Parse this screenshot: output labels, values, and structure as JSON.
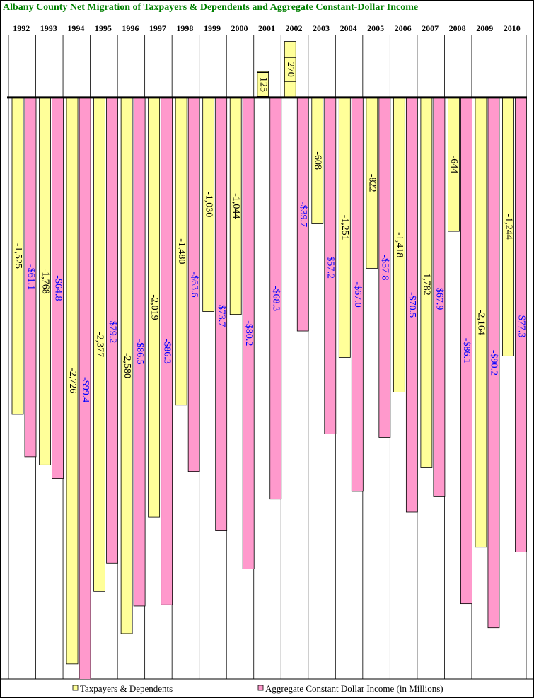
{
  "chart_data": {
    "type": "bar",
    "title": "Albany County Net Migration of Taxpayers & Dependents and Aggregate Constant-Dollar Income",
    "categories": [
      "1992",
      "1993",
      "1994",
      "1995",
      "1996",
      "1997",
      "1998",
      "1999",
      "2000",
      "2001",
      "2002",
      "2003",
      "2004",
      "2005",
      "2006",
      "2007",
      "2008",
      "2009",
      "2010"
    ],
    "series": [
      {
        "name": "Taxpayers & Dependents",
        "color": "#ffff99",
        "values": [
          -1525,
          -1768,
          -2726,
          -2377,
          -2580,
          -2019,
          -1480,
          -1030,
          -1044,
          125,
          270,
          -608,
          -1251,
          -822,
          -1418,
          -1782,
          -644,
          -2164,
          -1244
        ],
        "value_labels": [
          "-1,525",
          "-1,768",
          "-2,726",
          "-2,377",
          "-2,580",
          "-2,019",
          "-1,480",
          "-1,030",
          "-1,044",
          "125",
          "270",
          "-608",
          "-1,251",
          "-822",
          "-1,418",
          "-1,782",
          "-644",
          "-2,164",
          "-1,244"
        ]
      },
      {
        "name": "Aggregate Constant Dollar Income (in Millions)",
        "color": "#ff99cc",
        "axis": "y2",
        "values": [
          -61.1,
          -64.8,
          -99.4,
          -79.2,
          -86.5,
          -86.3,
          -63.6,
          -73.7,
          -80.2,
          -68.3,
          -39.7,
          -57.2,
          -67.0,
          -57.8,
          -70.5,
          -67.9,
          -86.1,
          -90.2,
          -77.3
        ],
        "value_labels": [
          "-$61.1",
          "-$64.8",
          "-$99.4",
          "-$79.2",
          "-$86.5",
          "-$86.3",
          "-$63.6",
          "-$73.7",
          "-$80.2",
          "-$68.3",
          "-$39.7",
          "-$57.2",
          "-$67.0",
          "-$57.8",
          "-$70.5",
          "-$67.9",
          "-$86.1",
          "-$90.2",
          "-$77.3"
        ]
      }
    ],
    "ylim": [
      -2798,
      282
    ],
    "y2lim": [
      -98.9,
      10
    ],
    "grid": true,
    "legend": "bottom"
  }
}
